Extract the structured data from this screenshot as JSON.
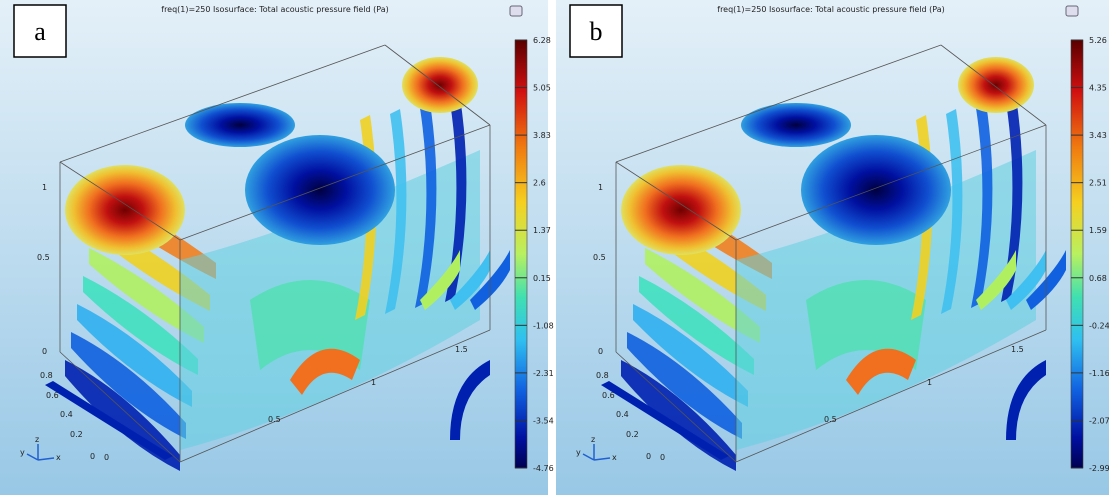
{
  "panels": [
    {
      "label": "a",
      "title": "freq(1)=250   Isosurface: Total acoustic pressure field (Pa)",
      "colorbar_ticks": [
        "6.28",
        "5.05",
        "3.83",
        "2.6",
        "1.37",
        "0.15",
        "-1.08",
        "-2.31",
        "-3.54",
        "-4.76"
      ],
      "z_ticks": [
        "1",
        "0.5",
        "0"
      ],
      "y_ticks": [
        "0.8",
        "0.6",
        "0.4",
        "0.2",
        "0"
      ],
      "x_ticks": [
        "0",
        "0.5",
        "1",
        "1.5"
      ],
      "triad": [
        "x",
        "y",
        "z"
      ]
    },
    {
      "label": "b",
      "title": "freq(1)=250   Isosurface: Total acoustic pressure field (Pa)",
      "colorbar_ticks": [
        "5.26",
        "4.35",
        "3.43",
        "2.51",
        "1.59",
        "0.68",
        "-0.24",
        "-1.16",
        "-2.07",
        "-2.99"
      ],
      "z_ticks": [
        "1",
        "0.5",
        "0"
      ],
      "y_ticks": [
        "0.8",
        "0.6",
        "0.4",
        "0.2",
        "0"
      ],
      "x_ticks": [
        "0",
        "0.5",
        "1",
        "1.5"
      ],
      "triad": [
        "x",
        "y",
        "z"
      ]
    }
  ]
}
